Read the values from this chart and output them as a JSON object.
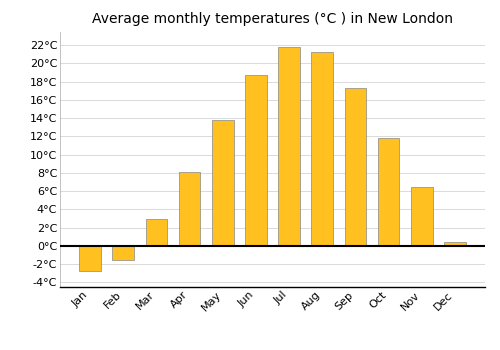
{
  "title": "Average monthly temperatures (°C ) in New London",
  "months": [
    "Jan",
    "Feb",
    "Mar",
    "Apr",
    "May",
    "Jun",
    "Jul",
    "Aug",
    "Sep",
    "Oct",
    "Nov",
    "Dec"
  ],
  "temperatures": [
    -2.7,
    -1.5,
    3.0,
    8.1,
    13.8,
    18.7,
    21.8,
    21.3,
    17.3,
    11.8,
    6.5,
    0.4
  ],
  "bar_color": "#FFC020",
  "bar_edge_color": "#888888",
  "ylim": [
    -4.5,
    23.5
  ],
  "yticks": [
    -4,
    -2,
    0,
    2,
    4,
    6,
    8,
    10,
    12,
    14,
    16,
    18,
    20,
    22
  ],
  "background_color": "#FFFFFF",
  "grid_color": "#CCCCCC",
  "title_fontsize": 10,
  "tick_fontsize": 8,
  "bar_width": 0.65
}
